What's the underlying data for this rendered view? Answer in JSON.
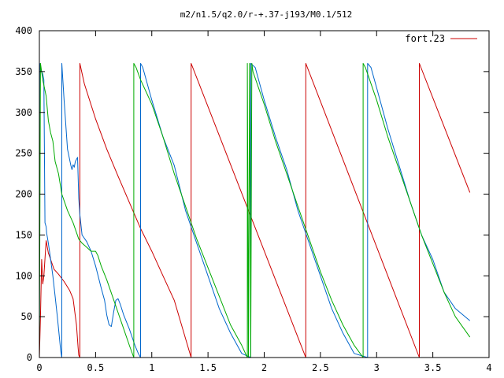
{
  "chart_data": {
    "type": "line",
    "title": "m2/n1.5/q2.0/r-+.37-j193/M0.1/512",
    "xlabel": "",
    "ylabel": "",
    "xlim": [
      0,
      4
    ],
    "ylim": [
      0,
      400
    ],
    "xticks": [
      {
        "value": 0,
        "label": "0"
      },
      {
        "value": 0.5,
        "label": "0.5"
      },
      {
        "value": 1,
        "label": "1"
      },
      {
        "value": 1.5,
        "label": "1.5"
      },
      {
        "value": 2,
        "label": "2"
      },
      {
        "value": 2.5,
        "label": "2.5"
      },
      {
        "value": 3,
        "label": "3"
      },
      {
        "value": 3.5,
        "label": "3.5"
      },
      {
        "value": 4,
        "label": "4"
      }
    ],
    "yticks": [
      {
        "value": 0,
        "label": "0"
      },
      {
        "value": 50,
        "label": "50"
      },
      {
        "value": 100,
        "label": "100"
      },
      {
        "value": 150,
        "label": "150"
      },
      {
        "value": 200,
        "label": "200"
      },
      {
        "value": 250,
        "label": "250"
      },
      {
        "value": 300,
        "label": "300"
      },
      {
        "value": 350,
        "label": "350"
      },
      {
        "value": 400,
        "label": "400"
      }
    ],
    "grid": false,
    "legend": {
      "position": "top-right",
      "entries": [
        {
          "label": "fort.23",
          "color": "#cc0000"
        }
      ]
    },
    "series": [
      {
        "color": "#cc0000",
        "x": [
          0,
          0.01,
          0.02,
          0.03,
          0.04,
          0.06,
          0.08,
          0.1,
          0.13,
          0.17,
          0.22,
          0.27,
          0.3,
          0.33,
          0.345,
          0.35,
          0.36,
          0.36,
          0.4,
          0.5,
          0.6,
          0.7,
          0.8,
          0.9,
          1.0,
          1.1,
          1.2,
          1.35,
          1.35,
          2.37,
          2.37,
          3.38,
          3.38,
          3.83
        ],
        "y": [
          0,
          50,
          120,
          90,
          100,
          143,
          128,
          120,
          108,
          102,
          93,
          82,
          72,
          40,
          12,
          3,
          0,
          360,
          335,
          292,
          255,
          222,
          190,
          158,
          130,
          100,
          70,
          0,
          360,
          0,
          360,
          0,
          360,
          202
        ]
      },
      {
        "color": "#0066cc",
        "x": [
          0,
          0.003,
          0.005,
          0.01,
          0.02,
          0.03,
          0.04,
          0.05,
          0.06,
          0.065,
          0.07,
          0.08,
          0.1,
          0.12,
          0.14,
          0.16,
          0.18,
          0.19,
          0.2,
          0.2,
          0.22,
          0.25,
          0.28,
          0.29,
          0.3,
          0.31,
          0.32,
          0.34,
          0.35,
          0.36,
          0.38,
          0.42,
          0.46,
          0.5,
          0.55,
          0.58,
          0.6,
          0.62,
          0.64,
          0.66,
          0.68,
          0.7,
          0.72,
          0.75,
          0.8,
          0.85,
          0.88,
          0.9,
          0.9,
          0.92,
          1.0,
          1.1,
          1.2,
          1.3,
          1.4,
          1.5,
          1.6,
          1.7,
          1.8,
          1.88,
          1.88,
          1.92,
          2.0,
          2.1,
          2.2,
          2.3,
          2.4,
          2.5,
          2.6,
          2.7,
          2.8,
          2.92,
          2.92,
          2.95,
          3.0,
          3.1,
          3.2,
          3.3,
          3.4,
          3.5,
          3.6,
          3.7,
          3.83
        ],
        "y": [
          0,
          360,
          355,
          352,
          350,
          347,
          340,
          165,
          160,
          152,
          148,
          140,
          120,
          100,
          75,
          50,
          22,
          8,
          0,
          360,
          315,
          255,
          235,
          230,
          236,
          233,
          240,
          245,
          195,
          175,
          150,
          142,
          130,
          112,
          85,
          70,
          52,
          40,
          38,
          55,
          70,
          72,
          65,
          52,
          35,
          15,
          5,
          0,
          360,
          355,
          315,
          270,
          235,
          180,
          140,
          100,
          60,
          30,
          5,
          0,
          360,
          355,
          315,
          270,
          230,
          180,
          140,
          100,
          60,
          30,
          5,
          0,
          360,
          355,
          330,
          280,
          235,
          190,
          150,
          120,
          80,
          60,
          45
        ]
      },
      {
        "color": "#00aa00",
        "x": [
          0,
          0.01,
          0.03,
          0.06,
          0.08,
          0.1,
          0.12,
          0.14,
          0.17,
          0.2,
          0.25,
          0.3,
          0.35,
          0.38,
          0.42,
          0.46,
          0.5,
          0.52,
          0.55,
          0.6,
          0.65,
          0.7,
          0.75,
          0.8,
          0.84,
          0.84,
          0.86,
          0.9,
          1.0,
          1.1,
          1.2,
          1.3,
          1.4,
          1.5,
          1.6,
          1.7,
          1.8,
          1.85,
          1.85,
          1.86,
          1.87,
          1.88,
          1.89,
          1.9,
          2.0,
          2.1,
          2.2,
          2.3,
          2.4,
          2.5,
          2.6,
          2.7,
          2.8,
          2.88,
          2.88,
          2.9,
          3.0,
          3.1,
          3.2,
          3.3,
          3.4,
          3.5,
          3.6,
          3.7,
          3.83
        ],
        "y": [
          0,
          360,
          340,
          320,
          290,
          275,
          265,
          240,
          225,
          200,
          180,
          165,
          145,
          140,
          135,
          130,
          130,
          125,
          112,
          95,
          75,
          55,
          35,
          15,
          0,
          360,
          355,
          340,
          310,
          270,
          225,
          185,
          145,
          110,
          75,
          40,
          15,
          0,
          360,
          0,
          360,
          0,
          360,
          350,
          310,
          265,
          225,
          185,
          145,
          105,
          70,
          40,
          15,
          0,
          360,
          355,
          315,
          270,
          230,
          190,
          150,
          115,
          80,
          50,
          25
        ]
      }
    ]
  }
}
